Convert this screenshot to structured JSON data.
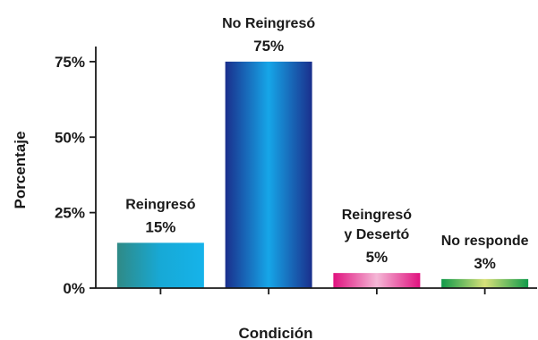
{
  "chart_data": {
    "type": "bar",
    "title": "",
    "xlabel": "Condición",
    "ylabel": "Porcentaje",
    "ylim": [
      0,
      80
    ],
    "yticks": [
      {
        "value": 0,
        "label": "0%"
      },
      {
        "value": 25,
        "label": "25%"
      },
      {
        "value": 50,
        "label": "50%"
      },
      {
        "value": 75,
        "label": "75%"
      }
    ],
    "categories": [
      "Reingresó",
      "No Reingresó",
      "Reingresó y Desertó",
      "No responde"
    ],
    "category_label_lines": [
      [
        "Reingresó"
      ],
      [
        "No Reingresó"
      ],
      [
        "Reingresó",
        "y Desertó"
      ],
      [
        "No responde"
      ]
    ],
    "values": [
      15,
      75,
      5,
      3
    ],
    "value_labels": [
      "15%",
      "75%",
      "5%",
      "3%"
    ],
    "bar_gradients": [
      [
        "#2f8a86",
        "#17a9d6",
        "#16b3ea"
      ],
      [
        "#1a2f8c",
        "#16a6e8",
        "#1a2f8c"
      ],
      [
        "#e0127f",
        "#f4b8d6",
        "#e0127f"
      ],
      [
        "#119a4a",
        "#d8e07a",
        "#119a4a"
      ]
    ],
    "grid": false,
    "legend": "none"
  }
}
